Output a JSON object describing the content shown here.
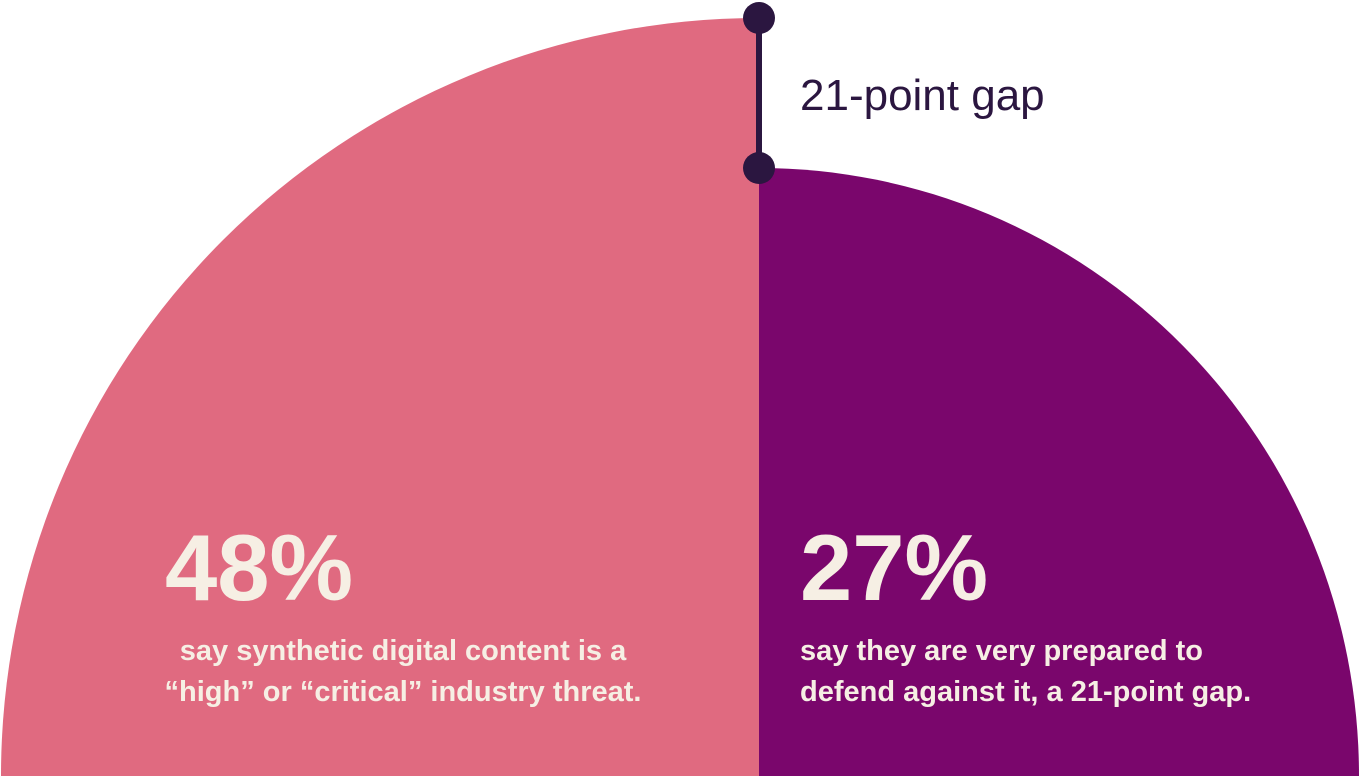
{
  "chart_data": {
    "type": "semi-circle-comparison",
    "title": "",
    "series": [
      {
        "value": 48,
        "label": "48%",
        "description_lines": [
          "say synthetic digital content is a",
          "“high” or “critical” industry threat."
        ],
        "color": "#e06a80"
      },
      {
        "value": 27,
        "label": "27%",
        "description_lines": [
          "say they are very prepared to",
          "defend against it, a 21-point gap."
        ],
        "color": "#7a066c"
      }
    ],
    "gap": {
      "value": 21,
      "label": "21-point gap",
      "color": "#2b1640"
    }
  }
}
